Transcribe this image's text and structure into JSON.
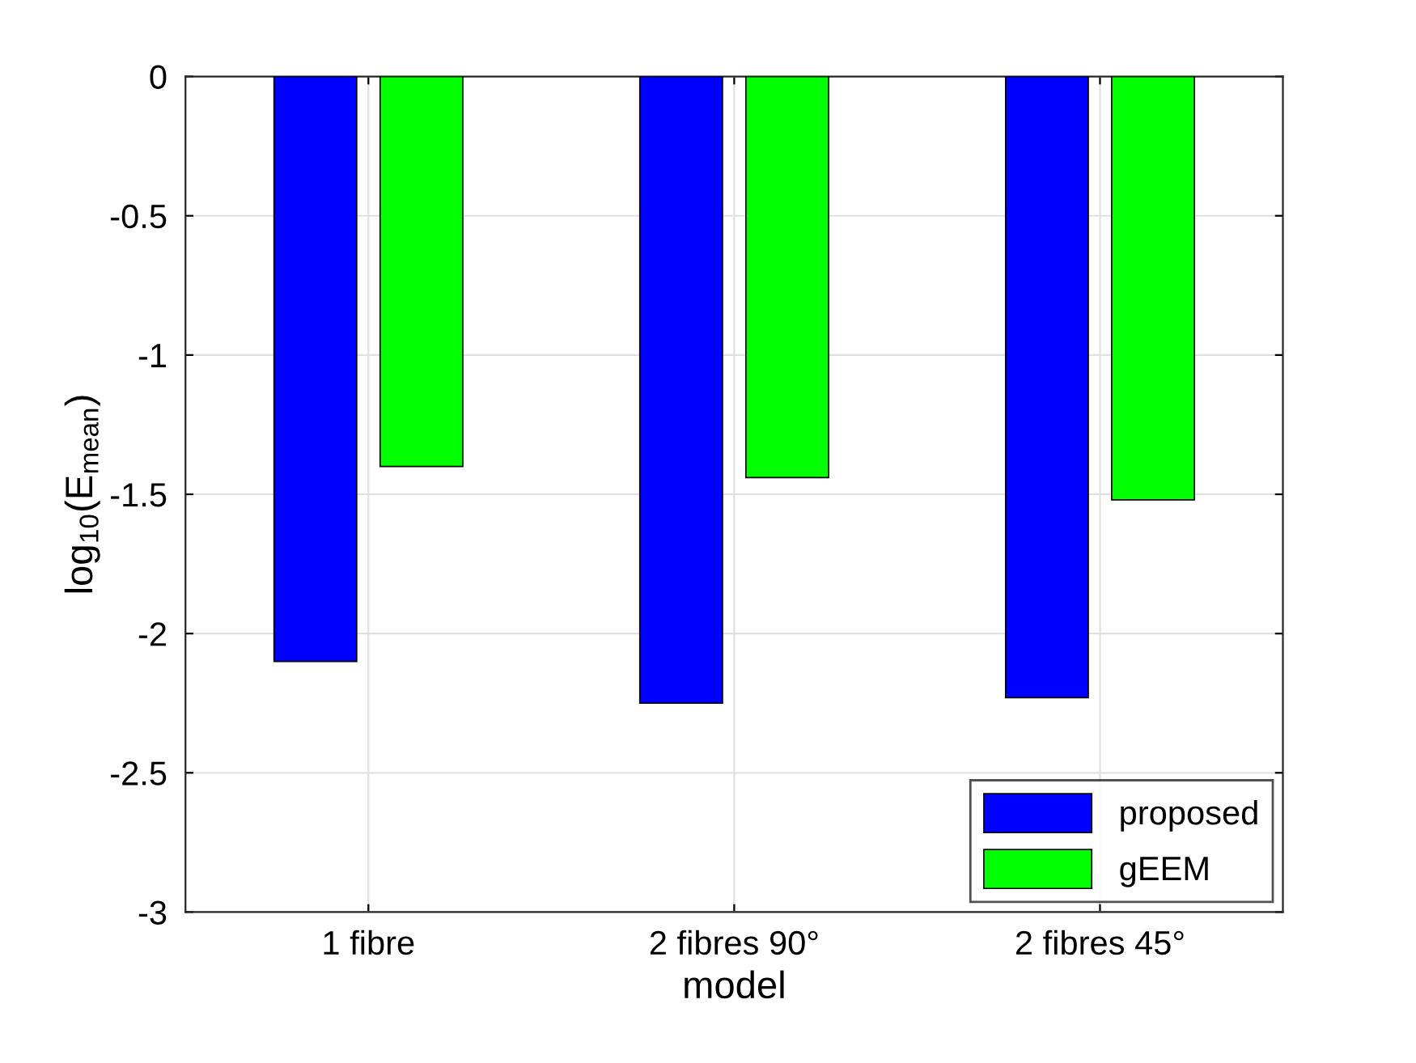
{
  "chart_data": {
    "type": "bar",
    "xlabel": "model",
    "ylabel": "log$_{10}$(E$_{mean}$)",
    "categories": [
      "1 fibre",
      "2 fibres 90°",
      "2 fibres 45°"
    ],
    "series": [
      {
        "name": "proposed",
        "color": "#0000ff",
        "values": [
          -2.1,
          -2.25,
          -2.23
        ]
      },
      {
        "name": "gEEM",
        "color": "#00ff00",
        "values": [
          -1.4,
          -1.44,
          -1.52
        ]
      }
    ],
    "ylim": [
      -3,
      0
    ],
    "yticks": [
      -3,
      -2.5,
      -2,
      -1.5,
      -1,
      -0.5,
      0
    ],
    "grid": true,
    "legend": "lower right"
  }
}
